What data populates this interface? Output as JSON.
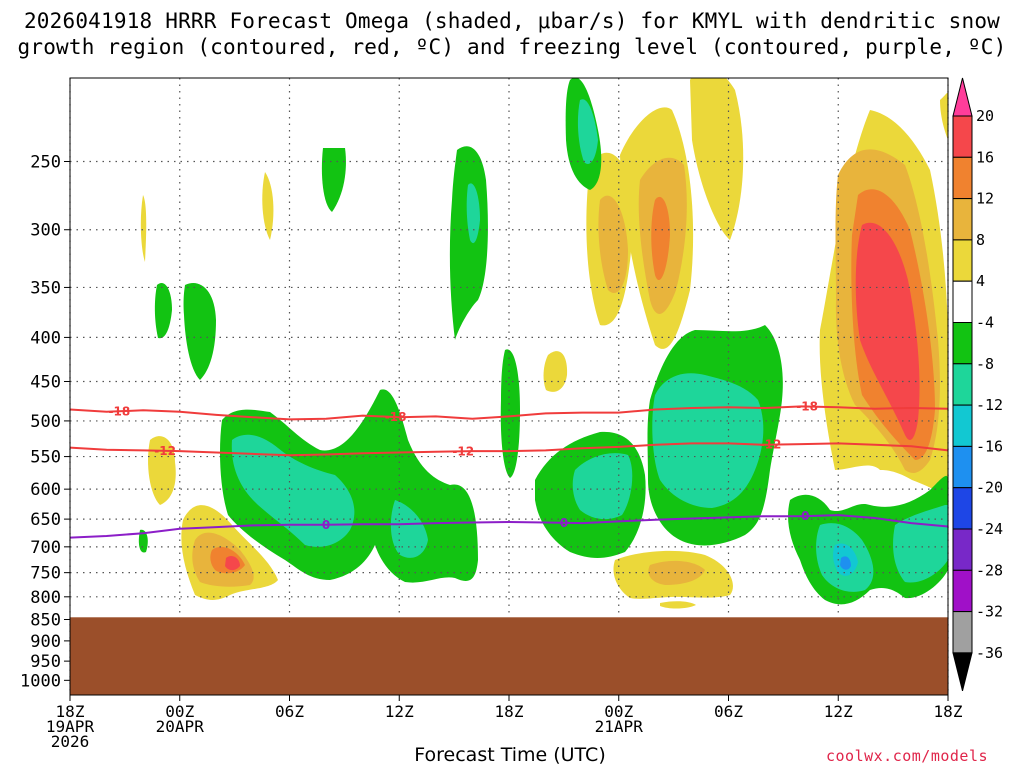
{
  "title_line1": "2026041918 HRRR Forecast Omega (shaded, μbar/s) for KMYL with dendritic snow",
  "title_line2": "growth region (contoured, red, ºC) and freezing level (contoured, purple, ºC)",
  "xlabel": "Forecast Time (UTC)",
  "credit": "coolwx.com/models",
  "colors": {
    "ground": "#9b4f2a",
    "dgz_contour": "#f03c3c",
    "freezing_contour": "#8c1ec8",
    "grid": "#555555"
  },
  "chart_data": {
    "type": "heatmap",
    "title": "2026041918 HRRR Forecast Omega (shaded, μbar/s) for KMYL with dendritic snow growth region (contoured, red, ºC) and freezing level (contoured, purple, ºC)",
    "xlabel": "Forecast Time (UTC)",
    "ylabel": "",
    "x_range_hours": [
      0,
      48
    ],
    "y_range_mb": [
      200,
      1040
    ],
    "y_scale": "log",
    "grid": true,
    "x_ticks": [
      {
        "hour": 0,
        "lines": [
          "18Z",
          "19APR",
          "2026"
        ]
      },
      {
        "hour": 6,
        "lines": [
          "00Z",
          "20APR"
        ]
      },
      {
        "hour": 12,
        "lines": [
          "06Z"
        ]
      },
      {
        "hour": 18,
        "lines": [
          "12Z"
        ]
      },
      {
        "hour": 24,
        "lines": [
          "18Z"
        ]
      },
      {
        "hour": 30,
        "lines": [
          "00Z",
          "21APR"
        ]
      },
      {
        "hour": 36,
        "lines": [
          "06Z"
        ]
      },
      {
        "hour": 42,
        "lines": [
          "12Z"
        ]
      },
      {
        "hour": 48,
        "lines": [
          "18Z"
        ]
      }
    ],
    "y_ticks": [
      250,
      300,
      350,
      400,
      450,
      500,
      550,
      600,
      650,
      700,
      750,
      800,
      850,
      900,
      950,
      1000
    ],
    "surface_pressure_mb": 845,
    "colorbar": {
      "labels": [
        20,
        16,
        12,
        8,
        4,
        -4,
        -8,
        -12,
        -16,
        -20,
        -24,
        -28,
        -32,
        -36
      ],
      "colors": [
        "#ff3d9a",
        "#f5474b",
        "#f0822f",
        "#e8b43c",
        "#ebd83a",
        "#ffffff",
        "#12c312",
        "#1ed69a",
        "#12c8d2",
        "#1e90f0",
        "#1e46e6",
        "#7828c8",
        "#a010c8",
        "#a0a0a0",
        "#000000"
      ]
    },
    "contours": [
      {
        "name": "dendritic growth -18",
        "label": "-18",
        "color": "#f03c3c",
        "points": [
          [
            0,
            485
          ],
          [
            2,
            488
          ],
          [
            4,
            486
          ],
          [
            6,
            488
          ],
          [
            8,
            492
          ],
          [
            10,
            495
          ],
          [
            12,
            498
          ],
          [
            14,
            497
          ],
          [
            16,
            493
          ],
          [
            18,
            495
          ],
          [
            20,
            494
          ],
          [
            22,
            497
          ],
          [
            24,
            494
          ],
          [
            26,
            490
          ],
          [
            28,
            489
          ],
          [
            30,
            489
          ],
          [
            32,
            485
          ],
          [
            34,
            483
          ],
          [
            36,
            482
          ],
          [
            38,
            483
          ],
          [
            40,
            481
          ],
          [
            42,
            482
          ],
          [
            44,
            484
          ],
          [
            46,
            483
          ],
          [
            48,
            484
          ]
        ],
        "label_hours": [
          2.7,
          17.8,
          40.3
        ]
      },
      {
        "name": "dendritic growth -12",
        "label": "-12",
        "color": "#f03c3c",
        "points": [
          [
            0,
            537
          ],
          [
            2,
            540
          ],
          [
            4,
            541
          ],
          [
            6,
            542
          ],
          [
            8,
            544
          ],
          [
            10,
            546
          ],
          [
            12,
            548
          ],
          [
            14,
            547
          ],
          [
            16,
            545
          ],
          [
            18,
            544
          ],
          [
            20,
            543
          ],
          [
            22,
            542
          ],
          [
            24,
            542
          ],
          [
            26,
            541
          ],
          [
            28,
            538
          ],
          [
            30,
            536
          ],
          [
            32,
            533
          ],
          [
            34,
            531
          ],
          [
            36,
            531
          ],
          [
            38,
            533
          ],
          [
            40,
            532
          ],
          [
            42,
            531
          ],
          [
            44,
            533
          ],
          [
            46,
            535
          ],
          [
            48,
            541
          ]
        ],
        "label_hours": [
          5.2,
          21.5,
          38.3
        ]
      },
      {
        "name": "freezing level 0",
        "label": "0",
        "color": "#8c1ec8",
        "points": [
          [
            0,
            683
          ],
          [
            2,
            680
          ],
          [
            4,
            675
          ],
          [
            6,
            667
          ],
          [
            8,
            664
          ],
          [
            10,
            661
          ],
          [
            12,
            660
          ],
          [
            14,
            660
          ],
          [
            16,
            659
          ],
          [
            18,
            659
          ],
          [
            20,
            657
          ],
          [
            22,
            656
          ],
          [
            24,
            655
          ],
          [
            26,
            656
          ],
          [
            28,
            657
          ],
          [
            30,
            654
          ],
          [
            32,
            651
          ],
          [
            34,
            649
          ],
          [
            36,
            647
          ],
          [
            38,
            645
          ],
          [
            40,
            645
          ],
          [
            42,
            643
          ],
          [
            44,
            648
          ],
          [
            46,
            657
          ],
          [
            48,
            663
          ]
        ],
        "label_hours": [
          14,
          27,
          40.2
        ]
      }
    ]
  }
}
